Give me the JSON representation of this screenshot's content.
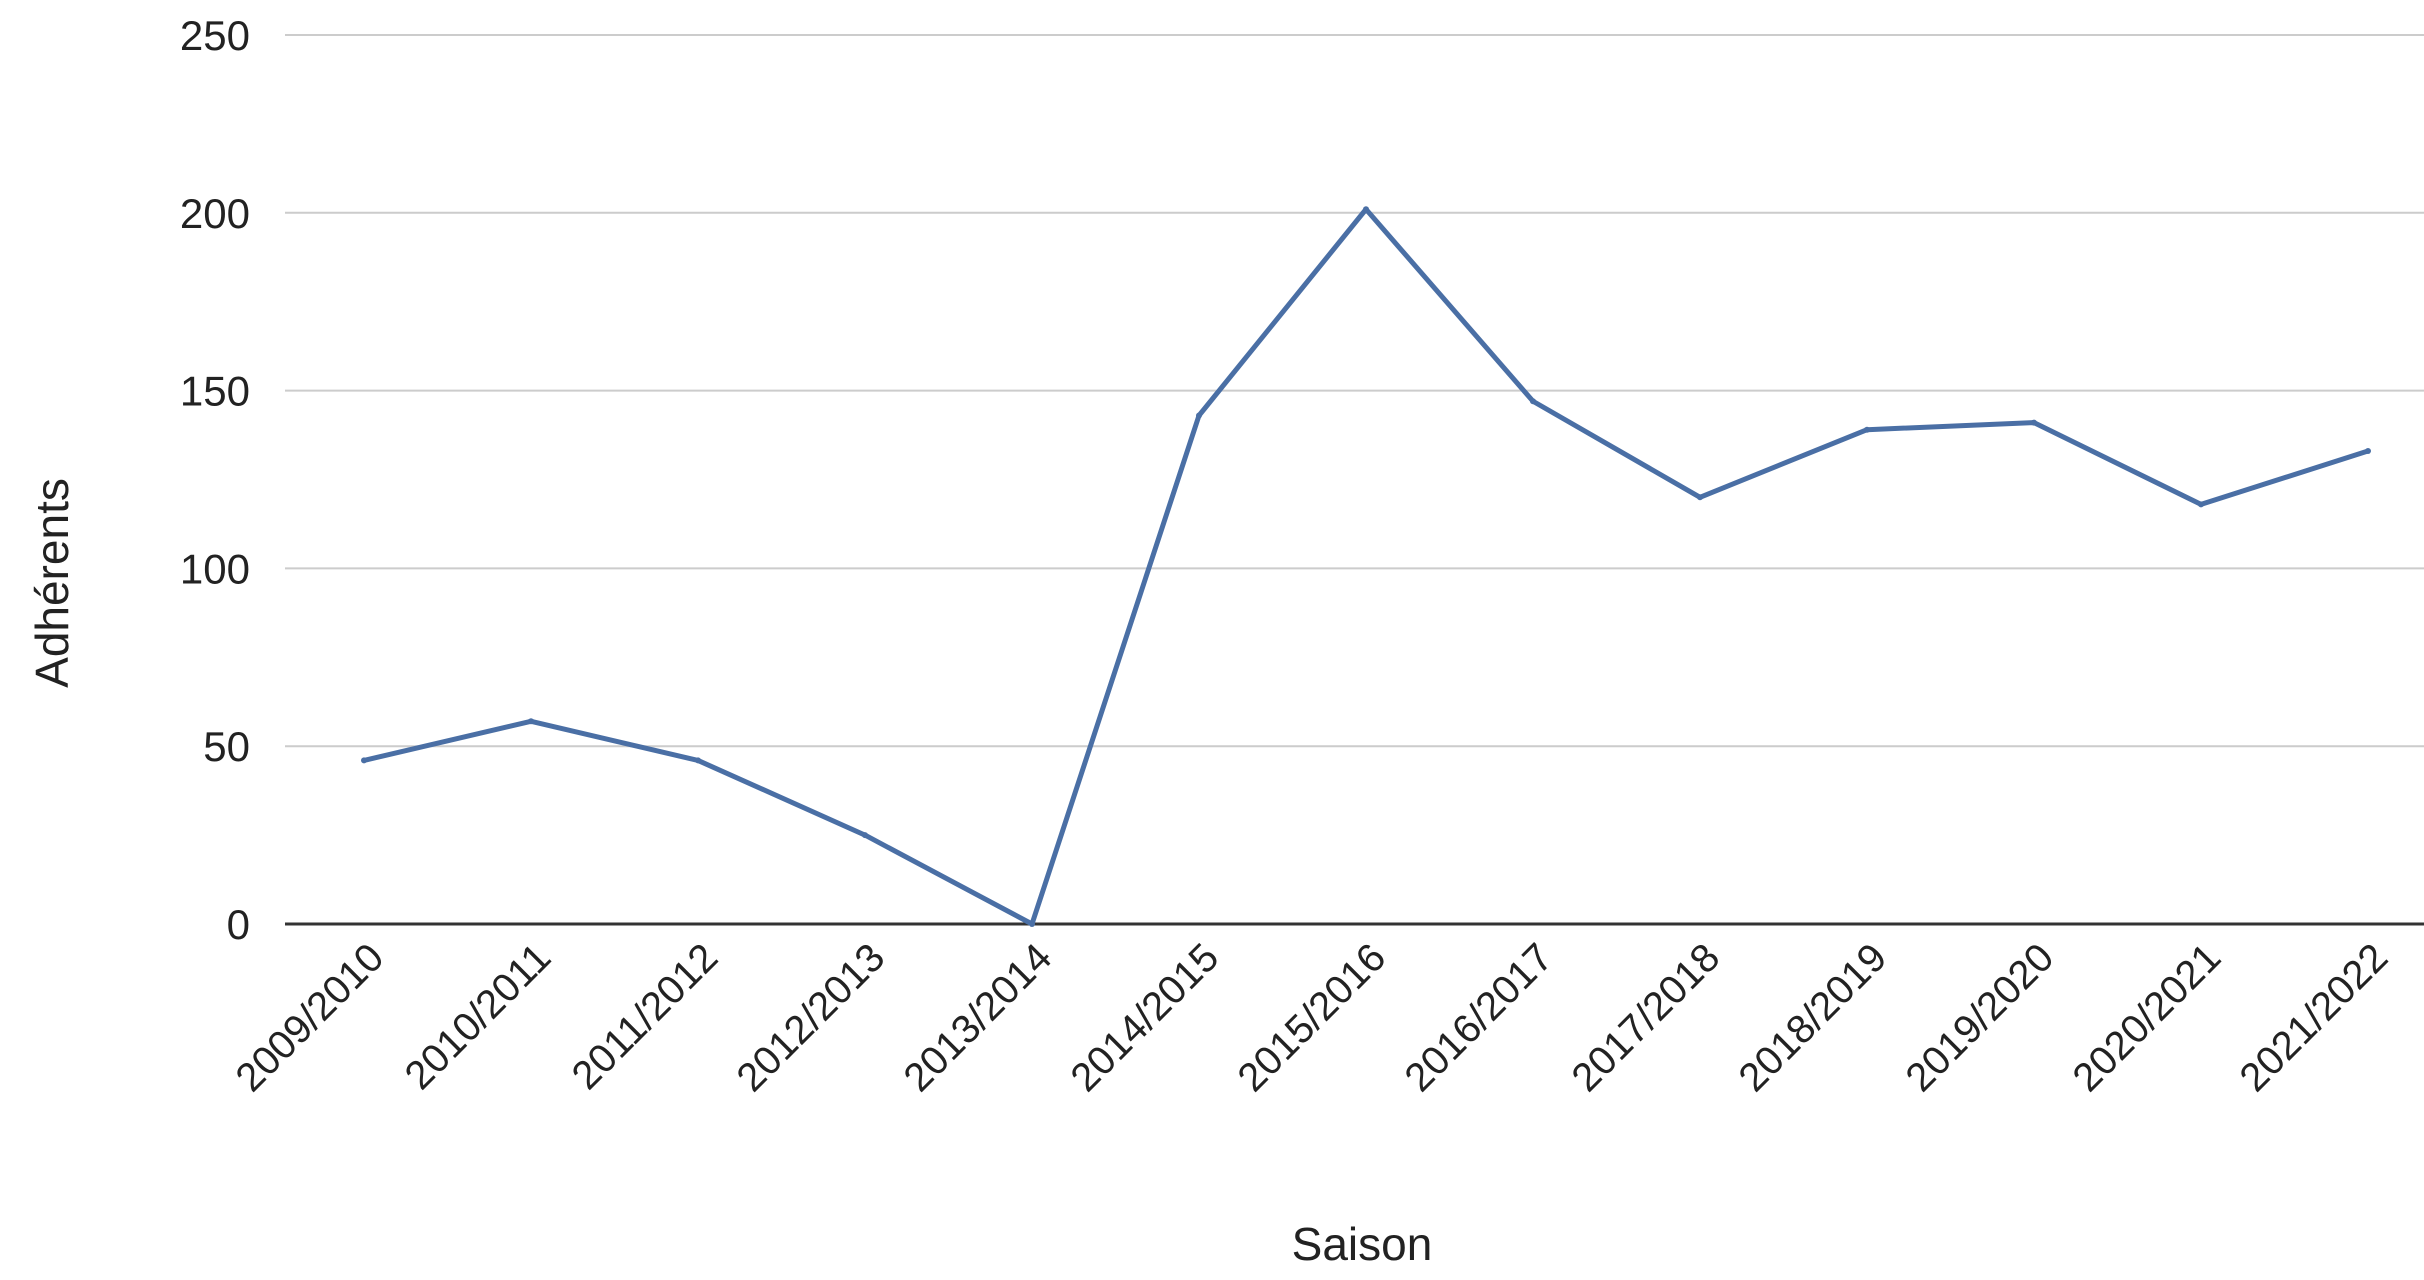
{
  "chart_data": {
    "type": "line",
    "title": "",
    "xlabel": "Saison",
    "ylabel": "Adhérents",
    "ylim": [
      0,
      250
    ],
    "yticks": [
      0,
      50,
      100,
      150,
      200,
      250
    ],
    "grid": true,
    "legend": "none",
    "categories": [
      "2009/2010",
      "2010/2011",
      "2011/2012",
      "2012/2013",
      "2013/2014",
      "2014/2015",
      "2015/2016",
      "2016/2017",
      "2017/2018",
      "2018/2019",
      "2019/2020",
      "2020/2021",
      "2021/2022"
    ],
    "series": [
      {
        "color": "#4a6fa5",
        "values": [
          46,
          57,
          46,
          25,
          0,
          143,
          201,
          147,
          120,
          139,
          141,
          118,
          133
        ]
      }
    ]
  }
}
